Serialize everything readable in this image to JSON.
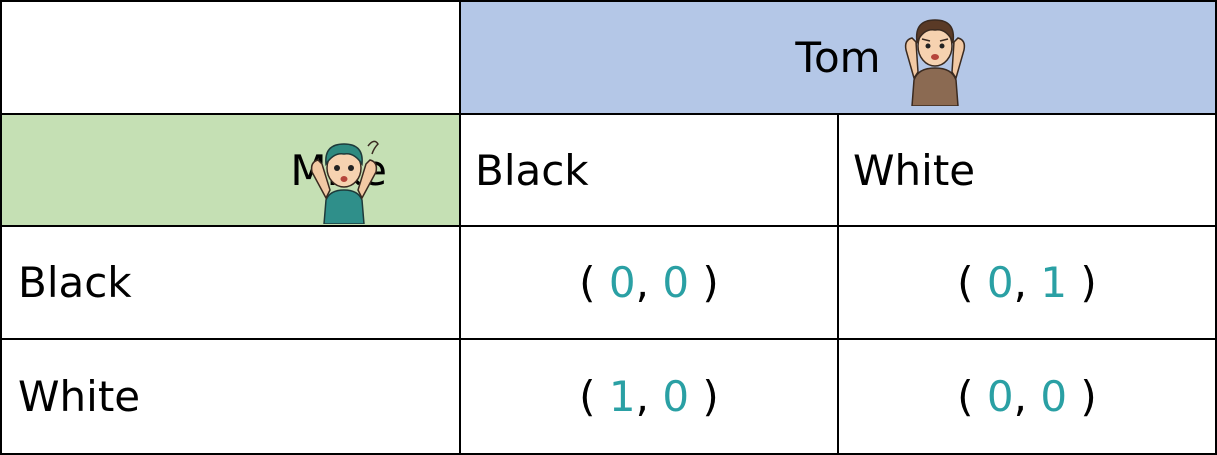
{
  "header": {
    "column_player": "Tom",
    "row_player": "Mike"
  },
  "columns": [
    "Black",
    "White"
  ],
  "rows": [
    {
      "label": "Black",
      "payoffs": [
        [
          "0",
          "0"
        ],
        [
          "0",
          "1"
        ]
      ]
    },
    {
      "label": "White",
      "payoffs": [
        [
          "1",
          "0"
        ],
        [
          "0",
          "0"
        ]
      ]
    }
  ],
  "colors": {
    "tom_header": "#b4c7e7",
    "mike_header": "#c5e0b4",
    "payoff_number": "#2aa0a4"
  },
  "icons": {
    "tom": "confused-boy-brown-shirt-icon",
    "mike": "confused-boy-teal-shirt-icon"
  }
}
